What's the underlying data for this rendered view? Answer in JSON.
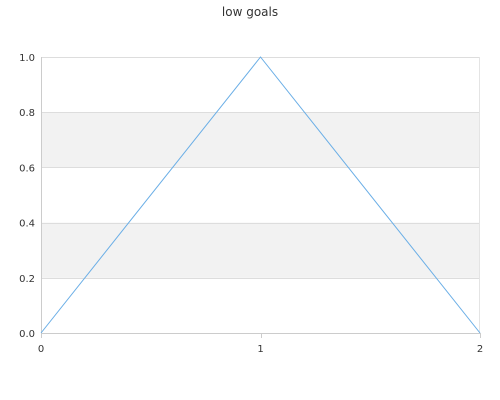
{
  "chart_data": {
    "type": "line",
    "title": "low goals",
    "xlabel": "",
    "ylabel": "",
    "x": [
      0,
      1,
      2
    ],
    "series": [
      {
        "values": [
          0,
          1,
          0
        ],
        "color": "#6aaee6"
      }
    ],
    "xlim": [
      0,
      2
    ],
    "ylim": [
      0,
      1
    ],
    "xticks": [
      "0",
      "1",
      "2"
    ],
    "yticks": [
      "0.0",
      "0.2",
      "0.4",
      "0.6",
      "0.8",
      "1.0"
    ],
    "grid": true,
    "legend": "none",
    "band_color": "#f2f2f2"
  }
}
